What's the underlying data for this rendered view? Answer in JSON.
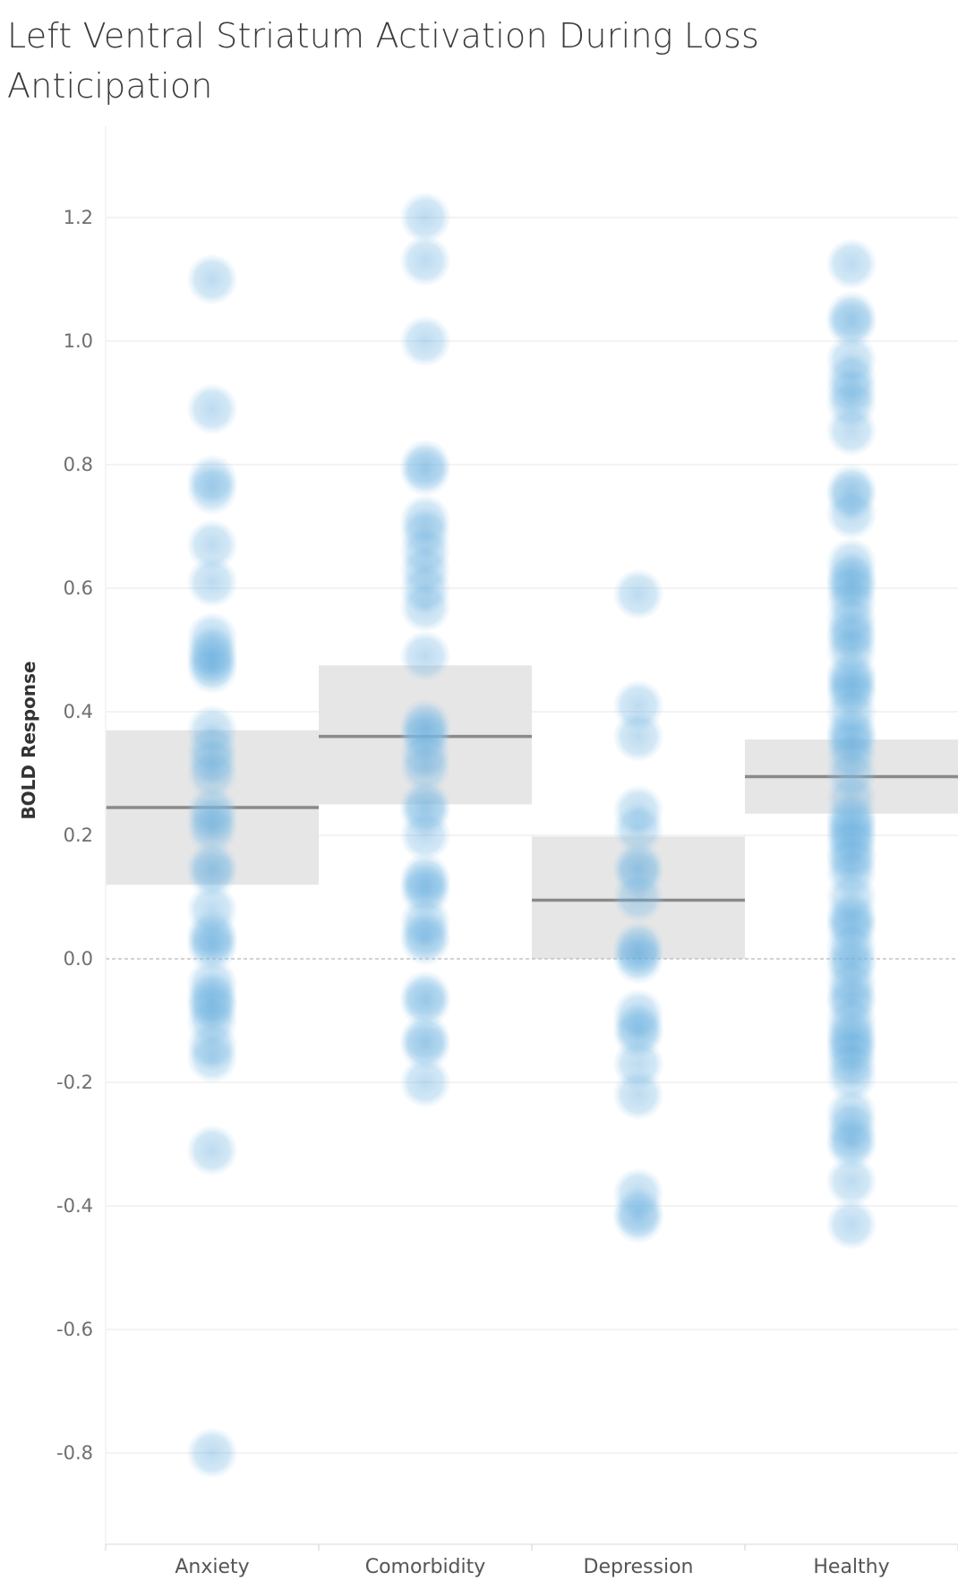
{
  "title": "Left Ventral Striatum Activation During Loss Anticipation",
  "chart_data": {
    "type": "scatter",
    "title": "Left Ventral Striatum Activation During Loss Anticipation",
    "ylabel": "BOLD Response",
    "xlabel": "",
    "categories": [
      "Anxiety",
      "Comorbidity",
      "Depression",
      "Healthy"
    ],
    "ylim": [
      -0.95,
      1.35
    ],
    "yticks": [
      -0.8,
      -0.6,
      -0.4,
      -0.2,
      0.0,
      0.2,
      0.4,
      0.6,
      0.8,
      1.0,
      1.2
    ],
    "ytick_labels": [
      "-0.8",
      "-0.6",
      "-0.4",
      "-0.2",
      "0.0",
      "0.2",
      "0.4",
      "0.6",
      "0.8",
      "1.0",
      "1.2"
    ],
    "grid": true,
    "zero_line": "dashed",
    "point_color": "#8ec3e6",
    "band_color": "#e6e6e6",
    "median_color": "#8a8a8a",
    "bands": [
      {
        "category": "Anxiety",
        "low": 0.12,
        "high": 0.37,
        "median": 0.245
      },
      {
        "category": "Comorbidity",
        "low": 0.25,
        "high": 0.475,
        "median": 0.36
      },
      {
        "category": "Depression",
        "low": 0.0,
        "high": 0.198,
        "median": 0.095
      },
      {
        "category": "Healthy",
        "low": 0.235,
        "high": 0.355,
        "median": 0.295
      }
    ],
    "series": [
      {
        "category": "Anxiety",
        "values": [
          1.1,
          0.89,
          0.775,
          0.76,
          0.67,
          0.61,
          0.52,
          0.5,
          0.49,
          0.48,
          0.47,
          0.37,
          0.34,
          0.32,
          0.3,
          0.24,
          0.225,
          0.21,
          0.15,
          0.14,
          0.08,
          0.04,
          0.03,
          0.02,
          -0.04,
          -0.06,
          -0.07,
          -0.08,
          -0.1,
          -0.14,
          -0.16,
          -0.31,
          -0.8
        ]
      },
      {
        "category": "Comorbidity",
        "values": [
          1.2,
          1.13,
          1.0,
          0.8,
          0.79,
          0.71,
          0.69,
          0.66,
          0.63,
          0.6,
          0.57,
          0.49,
          0.38,
          0.37,
          0.36,
          0.33,
          0.31,
          0.25,
          0.24,
          0.2,
          0.13,
          0.12,
          0.11,
          0.06,
          0.04,
          0.03,
          -0.06,
          -0.07,
          -0.13,
          -0.14,
          -0.2
        ]
      },
      {
        "category": "Depression",
        "values": [
          0.59,
          0.41,
          0.36,
          0.24,
          0.21,
          0.15,
          0.14,
          0.1,
          0.02,
          0.01,
          0.0,
          -0.09,
          -0.11,
          -0.12,
          -0.17,
          -0.22,
          -0.38,
          -0.41,
          -0.42
        ]
      },
      {
        "category": "Healthy",
        "values": [
          1.125,
          1.04,
          1.03,
          0.97,
          0.94,
          0.92,
          0.9,
          0.855,
          0.76,
          0.75,
          0.72,
          0.64,
          0.62,
          0.61,
          0.6,
          0.58,
          0.55,
          0.53,
          0.52,
          0.5,
          0.46,
          0.45,
          0.44,
          0.43,
          0.4,
          0.37,
          0.36,
          0.35,
          0.33,
          0.3,
          0.26,
          0.23,
          0.22,
          0.21,
          0.2,
          0.19,
          0.17,
          0.16,
          0.14,
          0.1,
          0.07,
          0.06,
          0.05,
          0.02,
          0.0,
          -0.01,
          -0.04,
          -0.06,
          -0.07,
          -0.1,
          -0.12,
          -0.13,
          -0.14,
          -0.15,
          -0.17,
          -0.19,
          -0.25,
          -0.27,
          -0.29,
          -0.3,
          -0.36,
          -0.43
        ]
      }
    ]
  }
}
